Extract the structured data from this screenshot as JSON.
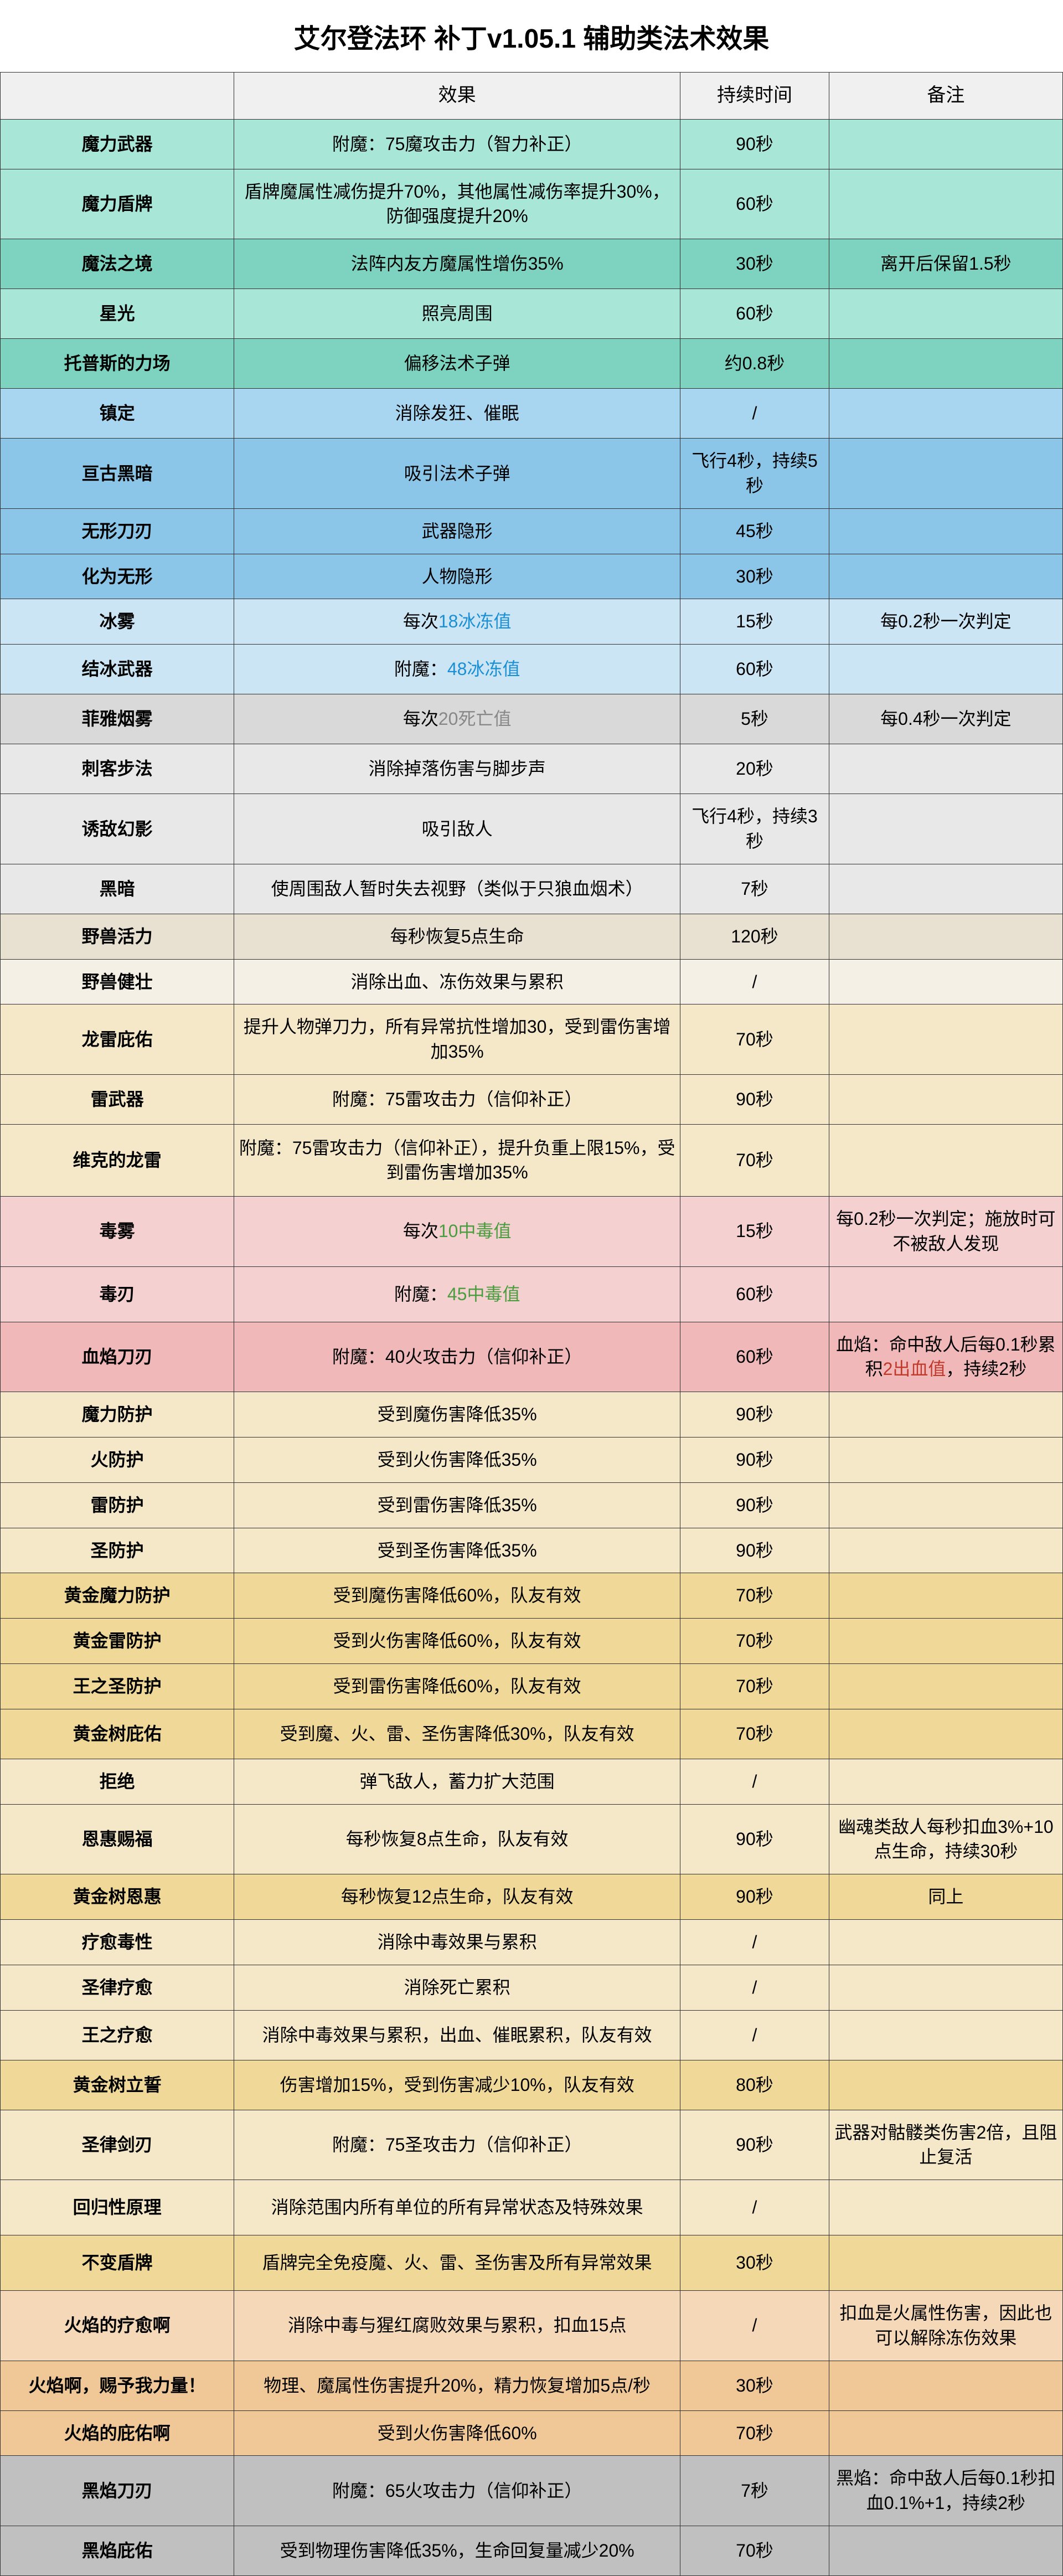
{
  "title": "艾尔登法环 补丁v1.05.1 辅助类法术效果",
  "headers": {
    "name": "",
    "effect": "效果",
    "duration": "持续时间",
    "note": "备注"
  },
  "colors": {
    "teal_light": "#a8e6d8",
    "teal_med": "#7dd3bf",
    "blue_light": "#a8d5f0",
    "blue_med": "#8bc5e8",
    "blue_pale": "#cce5f5",
    "gray_light": "#d9d9d9",
    "gray_pale": "#e8e8e8",
    "beige_light": "#f5f0e6",
    "beige_med": "#e8e0d0",
    "yellow_light": "#f5e8c8",
    "yellow_med": "#f0d998",
    "pink_light": "#f5d0d0",
    "pink_med": "#f0b8b8",
    "orange_light": "#f5d8b8",
    "orange_med": "#f0c898",
    "gray_dark": "#c0c0c0"
  },
  "rows": [
    {
      "name": "魔力武器",
      "effect_pre": "附魔：",
      "effect_hl": "75魔攻击力",
      "effect_hl_color": "none",
      "effect_post": "（智力补正）",
      "duration": "90秒",
      "note": "",
      "bg": "teal_light",
      "h": 90
    },
    {
      "name": "魔力盾牌",
      "effect": "盾牌魔属性减伤提升70%，其他属性减伤率提升30%，防御强度提升20%",
      "duration": "60秒",
      "note": "",
      "bg": "teal_light",
      "h": 110
    },
    {
      "name": "魔法之境",
      "effect": "法阵内友方魔属性增伤35%",
      "duration": "30秒",
      "note": "离开后保留1.5秒",
      "bg": "teal_med",
      "h": 90
    },
    {
      "name": "星光",
      "effect": "照亮周围",
      "duration": "60秒",
      "note": "",
      "bg": "teal_light",
      "h": 90
    },
    {
      "name": "托普斯的力场",
      "effect": "偏移法术子弹",
      "duration": "约0.8秒",
      "note": "",
      "bg": "teal_med",
      "h": 90
    },
    {
      "name": "镇定",
      "effect": "消除发狂、催眠",
      "duration": "/",
      "note": "",
      "bg": "blue_light",
      "h": 90
    },
    {
      "name": "亘古黑暗",
      "effect": "吸引法术子弹",
      "duration": "飞行4秒，持续5秒",
      "note": "",
      "bg": "blue_med",
      "h": 70
    },
    {
      "name": "无形刀刃",
      "effect": "武器隐形",
      "duration": "45秒",
      "note": "",
      "bg": "blue_med",
      "h": 70
    },
    {
      "name": "化为无形",
      "effect": "人物隐形",
      "duration": "30秒",
      "note": "",
      "bg": "blue_med",
      "h": 70
    },
    {
      "name": "冰雾",
      "effect_pre": "每次",
      "effect_hl": "18冰冻值",
      "effect_hl_color": "cyan",
      "duration": "15秒",
      "note": "每0.2秒一次判定",
      "bg": "blue_pale",
      "h": 70
    },
    {
      "name": "结冰武器",
      "effect_pre": "附魔：",
      "effect_hl": "48冰冻值",
      "effect_hl_color": "cyan",
      "duration": "60秒",
      "note": "",
      "bg": "blue_pale",
      "h": 90
    },
    {
      "name": "菲雅烟雾",
      "effect_pre": "每次",
      "effect_hl": "20死亡值",
      "effect_hl_color": "gray",
      "duration": "5秒",
      "note": "每0.4秒一次判定",
      "bg": "gray_light",
      "h": 90
    },
    {
      "name": "刺客步法",
      "effect": "消除掉落伤害与脚步声",
      "duration": "20秒",
      "note": "",
      "bg": "gray_pale",
      "h": 90
    },
    {
      "name": "诱敌幻影",
      "effect": "吸引敌人",
      "duration": "飞行4秒，持续3秒",
      "note": "",
      "bg": "gray_pale",
      "h": 90
    },
    {
      "name": "黑暗",
      "effect": "使周围敌人暂时失去视野（类似于只狼血烟术）",
      "duration": "7秒",
      "note": "",
      "bg": "gray_pale",
      "h": 90
    },
    {
      "name": "野兽活力",
      "effect": "每秒恢复5点生命",
      "duration": "120秒",
      "note": "",
      "bg": "beige_med",
      "h": 60
    },
    {
      "name": "野兽健壮",
      "effect": "消除出血、冻伤效果与累积",
      "duration": "/",
      "note": "",
      "bg": "beige_light",
      "h": 50
    },
    {
      "name": "龙雷庇佑",
      "effect": "提升人物弹刀力，所有异常抗性增加30，受到雷伤害增加35%",
      "duration": "70秒",
      "note": "",
      "bg": "yellow_light",
      "h": 100
    },
    {
      "name": "雷武器",
      "effect": "附魔：75雷攻击力（信仰补正）",
      "duration": "90秒",
      "note": "",
      "bg": "yellow_light",
      "h": 90
    },
    {
      "name": "维克的龙雷",
      "effect": "附魔：75雷攻击力（信仰补正），提升负重上限15%，受到雷伤害增加35%",
      "duration": "70秒",
      "note": "",
      "bg": "yellow_light",
      "h": 130
    },
    {
      "name": "毒雾",
      "effect_pre": "每次",
      "effect_hl": "10中毒值",
      "effect_hl_color": "green",
      "duration": "15秒",
      "note": "每0.2秒一次判定；施放时可不被敌人发现",
      "bg": "pink_light",
      "h": 100
    },
    {
      "name": "毒刃",
      "effect_pre": "附魔：",
      "effect_hl": "45中毒值",
      "effect_hl_color": "green",
      "duration": "60秒",
      "note": "",
      "bg": "pink_light",
      "h": 100
    },
    {
      "name": "血焰刀刃",
      "effect": "附魔：40火攻击力（信仰补正）",
      "duration": "60秒",
      "note_pre": "血焰：命中敌人后每0.1秒累积",
      "note_hl": "2出血值",
      "note_hl_color": "red",
      "note_post": "，持续2秒",
      "bg": "pink_med",
      "h": 90
    },
    {
      "name": "魔力防护",
      "effect": "受到魔伤害降低35%",
      "duration": "90秒",
      "note": "",
      "bg": "yellow_light",
      "h": 55
    },
    {
      "name": "火防护",
      "effect": "受到火伤害降低35%",
      "duration": "90秒",
      "note": "",
      "bg": "yellow_light",
      "h": 55
    },
    {
      "name": "雷防护",
      "effect": "受到雷伤害降低35%",
      "duration": "90秒",
      "note": "",
      "bg": "yellow_light",
      "h": 55
    },
    {
      "name": "圣防护",
      "effect": "受到圣伤害降低35%",
      "duration": "90秒",
      "note": "",
      "bg": "yellow_light",
      "h": 55
    },
    {
      "name": "黄金魔力防护",
      "effect": "受到魔伤害降低60%，队友有效",
      "duration": "70秒",
      "note": "",
      "bg": "yellow_med",
      "h": 55
    },
    {
      "name": "黄金雷防护",
      "effect": "受到火伤害降低60%，队友有效",
      "duration": "70秒",
      "note": "",
      "bg": "yellow_med",
      "h": 55
    },
    {
      "name": "王之圣防护",
      "effect": "受到雷伤害降低60%，队友有效",
      "duration": "70秒",
      "note": "",
      "bg": "yellow_med",
      "h": 55
    },
    {
      "name": "黄金树庇佑",
      "effect": "受到魔、火、雷、圣伤害降低30%，队友有效",
      "duration": "70秒",
      "note": "",
      "bg": "yellow_med",
      "h": 90
    },
    {
      "name": "拒绝",
      "effect": "弹飞敌人，蓄力扩大范围",
      "duration": "/",
      "note": "",
      "bg": "yellow_light",
      "h": 55
    },
    {
      "name": "恩惠赐福",
      "effect": "每秒恢复8点生命，队友有效",
      "duration": "90秒",
      "note": "幽魂类敌人每秒扣血3%+10点生命，持续30秒",
      "bg": "yellow_light",
      "h": 90
    },
    {
      "name": "黄金树恩惠",
      "effect": "每秒恢复12点生命，队友有效",
      "duration": "90秒",
      "note": "同上",
      "bg": "yellow_med",
      "h": 55
    },
    {
      "name": "疗愈毒性",
      "effect": "消除中毒效果与累积",
      "duration": "/",
      "note": "",
      "bg": "yellow_light",
      "h": 55
    },
    {
      "name": "圣律疗愈",
      "effect": "消除死亡累积",
      "duration": "/",
      "note": "",
      "bg": "yellow_light",
      "h": 55
    },
    {
      "name": "王之疗愈",
      "effect": "消除中毒效果与累积，出血、催眠累积，队友有效",
      "duration": "/",
      "note": "",
      "bg": "yellow_light",
      "h": 90
    },
    {
      "name": "黄金树立誓",
      "effect": "伤害增加15%，受到伤害减少10%，队友有效",
      "duration": "80秒",
      "note": "",
      "bg": "yellow_med",
      "h": 90
    },
    {
      "name": "圣律剑刃",
      "effect": "附魔：75圣攻击力（信仰补正）",
      "duration": "90秒",
      "note": "武器对骷髅类伤害2倍，且阻止复活",
      "bg": "yellow_light",
      "h": 100
    },
    {
      "name": "回归性原理",
      "effect": "消除范围内所有单位的所有异常状态及特殊效果",
      "duration": "/",
      "note": "",
      "bg": "yellow_light",
      "h": 100
    },
    {
      "name": "不变盾牌",
      "effect": "盾牌完全免疫魔、火、雷、圣伤害及所有异常效果",
      "duration": "30秒",
      "note": "",
      "bg": "yellow_med",
      "h": 100
    },
    {
      "name": "火焰的疗愈啊",
      "effect": "消除中毒与猩红腐败效果与累积，扣血15点",
      "duration": "/",
      "note": "扣血是火属性伤害，因此也可以解除冻伤效果",
      "bg": "orange_light",
      "h": 100
    },
    {
      "name": "火焰啊，赐予我力量！",
      "effect": "物理、魔属性伤害提升20%，精力恢复增加5点/秒",
      "duration": "30秒",
      "note": "",
      "bg": "orange_med",
      "h": 90
    },
    {
      "name": "火焰的庇佑啊",
      "effect": "受到火伤害降低60%",
      "duration": "70秒",
      "note": "",
      "bg": "orange_med",
      "h": 55
    },
    {
      "name": "黑焰刀刃",
      "effect": "附魔：65火攻击力（信仰补正）",
      "duration": "7秒",
      "note": "黑焰：命中敌人后每0.1秒扣血0.1%+1，持续2秒",
      "bg": "gray_dark",
      "h": 90
    },
    {
      "name": "黑焰庇佑",
      "effect": "受到物理伤害降低35%，生命回复量减少20%",
      "duration": "70秒",
      "note": "",
      "bg": "gray_dark",
      "h": 90
    }
  ]
}
